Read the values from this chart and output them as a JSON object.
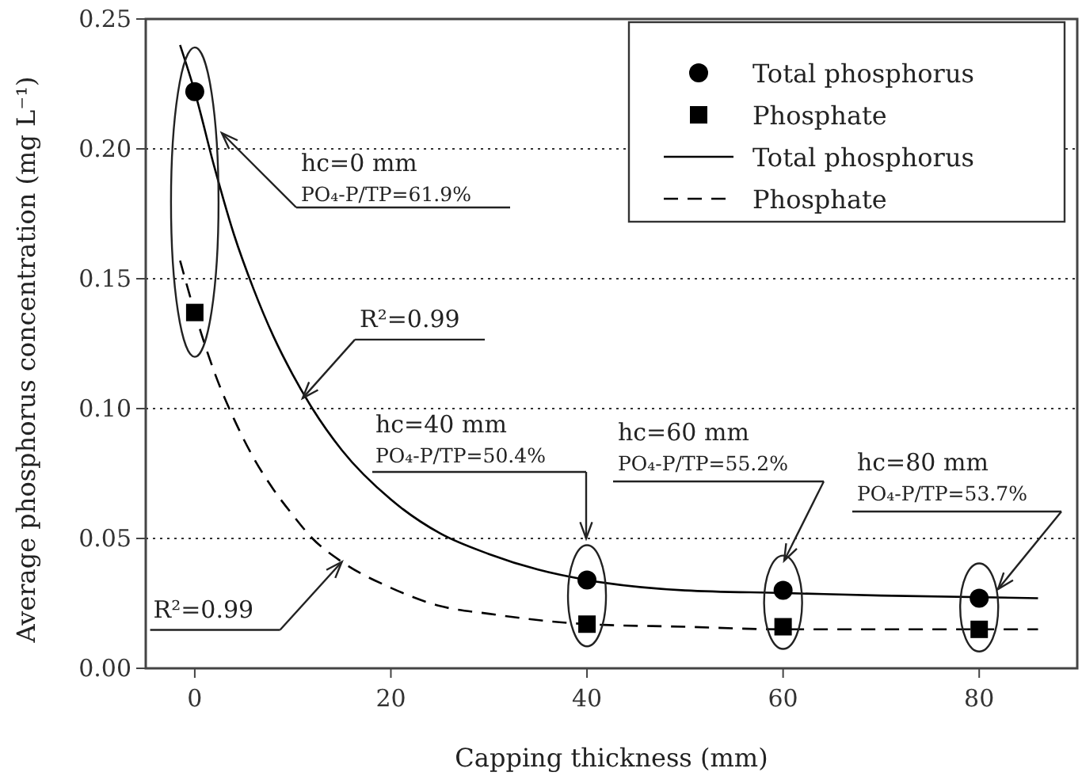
{
  "chart_data": {
    "type": "scatter",
    "xlabel": "Capping thickness (mm)",
    "ylabel": "Average phosphorus concentration (mg L⁻¹)",
    "xlim": [
      -5,
      90
    ],
    "xticks": [
      0,
      20,
      40,
      60,
      80
    ],
    "ylim": [
      0,
      0.25
    ],
    "yticks": [
      {
        "value": 0,
        "label": "0.00"
      },
      {
        "value": 0.05,
        "label": "0.05"
      },
      {
        "value": 0.1,
        "label": "0.10"
      },
      {
        "value": 0.15,
        "label": "0.15"
      },
      {
        "value": 0.2,
        "label": "0.20"
      },
      {
        "value": 0.25,
        "label": "0.25"
      }
    ],
    "grid": "y",
    "legend": "top right",
    "series": [
      {
        "name": "Total phosphorus",
        "marker": "circle",
        "color": "#000000",
        "x": [
          0,
          40,
          60,
          80
        ],
        "values": [
          0.222,
          0.034,
          0.03,
          0.027
        ]
      },
      {
        "name": "Phosphate",
        "marker": "square",
        "color": "#000000",
        "x": [
          0,
          40,
          60,
          80
        ],
        "values": [
          0.137,
          0.017,
          0.016,
          0.015
        ]
      },
      {
        "name": "Total phosphorus",
        "type": "line",
        "line_style": "solid",
        "color": "#000000",
        "x": [
          -1.5,
          0,
          2,
          4,
          6,
          8,
          10,
          12,
          15,
          20,
          25,
          30,
          35,
          40,
          50,
          60,
          70,
          86
        ],
        "values": [
          0.24,
          0.222,
          0.193,
          0.167,
          0.146,
          0.128,
          0.113,
          0.1,
          0.084,
          0.065,
          0.052,
          0.044,
          0.038,
          0.034,
          0.03,
          0.029,
          0.028,
          0.027
        ]
      },
      {
        "name": "Phosphate",
        "type": "line",
        "line_style": "dashed",
        "color": "#000000",
        "x": [
          -1.5,
          0,
          2,
          4,
          6,
          8,
          10,
          12,
          15,
          20,
          25,
          30,
          40,
          50,
          60,
          86
        ],
        "values": [
          0.157,
          0.137,
          0.114,
          0.096,
          0.081,
          0.069,
          0.059,
          0.05,
          0.041,
          0.031,
          0.024,
          0.021,
          0.017,
          0.016,
          0.015,
          0.015
        ]
      }
    ],
    "annotations": [
      "hc=0 mm\nPO₄-P/TP=61.9%",
      {
        "text": "R²=0.99",
        "x": 11,
        "y": 0.104
      },
      "hc=40 mm\nPO₄-P/TP=50.4%",
      "hc=60 mm\nPO₄-P/TP=55.2%",
      "hc=80 mm\nPO₄-P/TP=53.7%",
      {
        "text": "R²=0.99",
        "x": 15,
        "y": 0.041
      }
    ]
  }
}
